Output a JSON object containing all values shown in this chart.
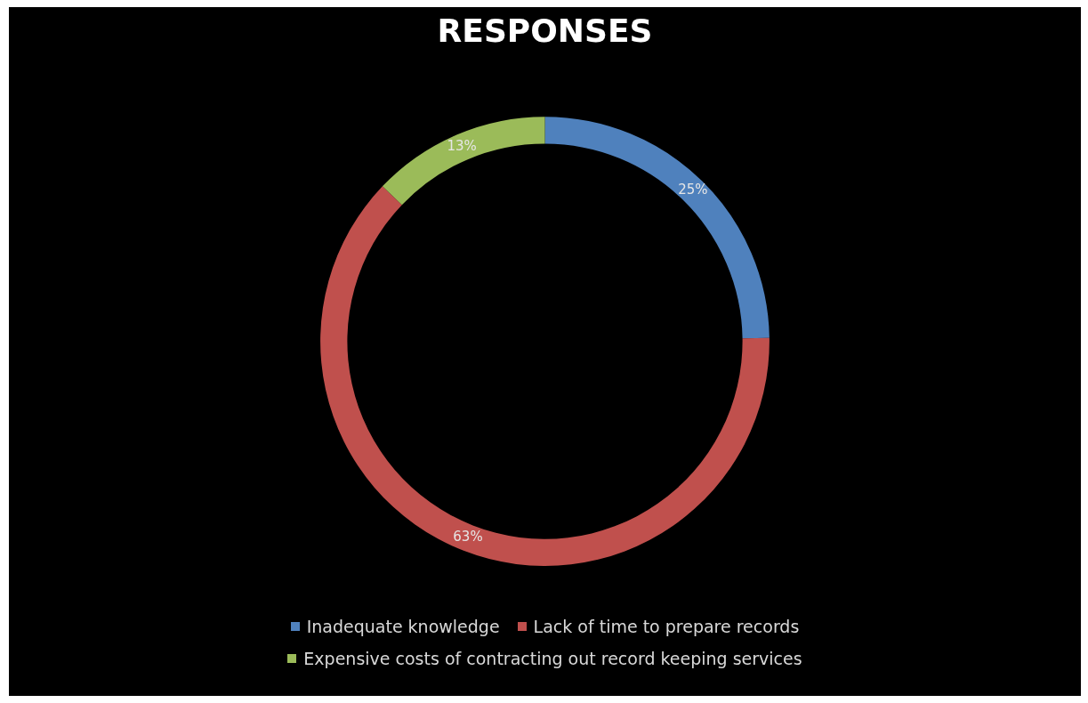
{
  "chart_data": {
    "type": "donut",
    "title": "RESPONSES",
    "categories": [
      "Inadequate knowledge",
      "Lack of time to prepare records",
      "Expensive costs of contracting out record keeping services"
    ],
    "values": [
      25,
      63,
      13
    ],
    "colors": [
      "#4f81bd",
      "#c0504d",
      "#9bbb59"
    ],
    "value_labels": [
      "25%",
      "63%",
      "13%"
    ],
    "legend": "bottom"
  }
}
